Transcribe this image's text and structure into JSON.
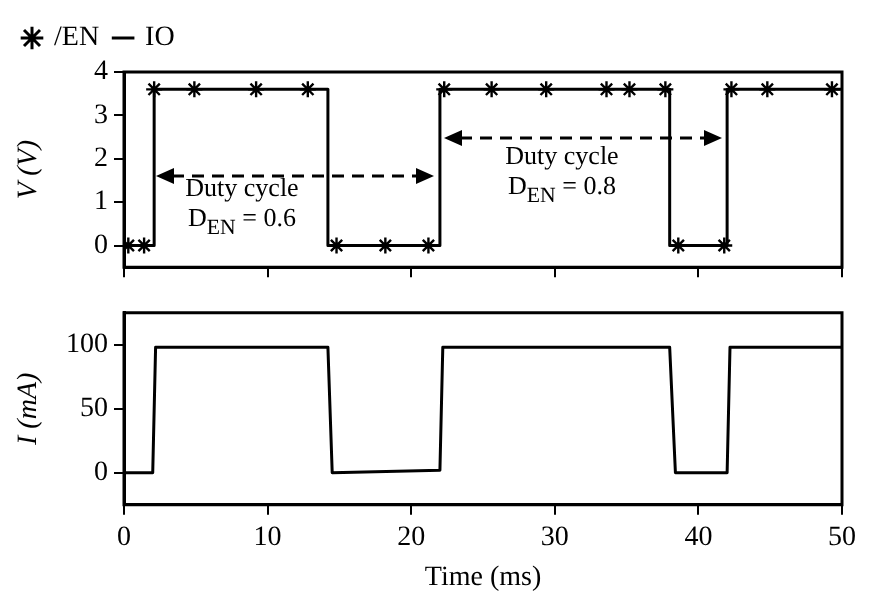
{
  "chart_data": [
    {
      "type": "line",
      "ylabel": "V (V)",
      "xlim": [
        0,
        50
      ],
      "xticks": [
        0,
        10,
        20,
        30,
        40,
        50
      ],
      "ylim": [
        -0.5,
        4
      ],
      "yticks": [
        0,
        1,
        2,
        3,
        4
      ],
      "tick_labels": "y",
      "legend": "top left",
      "grid": false,
      "series": [
        {
          "name": "/EN",
          "type": "scatter",
          "marker": "cross",
          "color": "#000000",
          "x": [
            0.3,
            1.4,
            2.1,
            4.9,
            9.2,
            12.8,
            14.8,
            18.2,
            21.2,
            22.3,
            25.6,
            29.4,
            33.6,
            35.2,
            37.7,
            38.6,
            41.8,
            42.3,
            44.8,
            49.3
          ],
          "values": [
            0,
            0,
            3.6,
            3.6,
            3.6,
            3.6,
            0,
            0,
            0,
            3.6,
            3.6,
            3.6,
            3.6,
            3.6,
            3.6,
            0,
            0,
            3.6,
            3.6,
            3.6
          ]
        },
        {
          "name": "IO",
          "type": "step",
          "marker": "none",
          "color": "#000000",
          "x": [
            0,
            2.1,
            14.2,
            22,
            38,
            42,
            50
          ],
          "values": [
            0,
            3.6,
            0,
            3.6,
            0,
            3.6,
            3.6
          ]
        }
      ],
      "annotations": [
        "Duty cycle D$_{EN}$ = 0.6",
        "Duty cycle D$_{EN}$ = 0.8"
      ]
    },
    {
      "type": "line",
      "xlabel": "Time (ms)",
      "ylabel": "I (mA)",
      "xlim": [
        0,
        50
      ],
      "xticks": [
        0,
        10,
        20,
        30,
        40,
        50
      ],
      "ylim": [
        -25,
        125
      ],
      "yticks": [
        0,
        50,
        100
      ],
      "grid": false,
      "legend": false,
      "series": [
        {
          "color": "#000000",
          "marker": "none",
          "x": [
            0,
            2,
            2.2,
            14.2,
            14.5,
            22,
            22.2,
            38,
            38.4,
            42,
            42.2,
            50
          ],
          "values": [
            0,
            0,
            98,
            98,
            0,
            2,
            98,
            98,
            0,
            0,
            98,
            98
          ]
        }
      ]
    }
  ]
}
